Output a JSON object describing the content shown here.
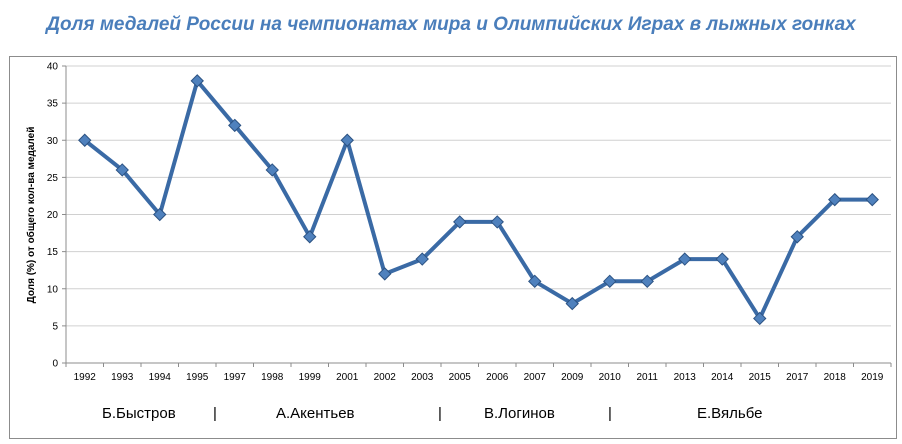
{
  "chart_data": {
    "type": "line",
    "title": "Доля медалей России на чемпионатах мира и Олимпийских Играх в лыжных гонках",
    "ylabel": "Доля (%) от  общего кол-ва медалей",
    "xlabel": "",
    "ylim": [
      0,
      40
    ],
    "yticks": [
      0,
      5,
      10,
      15,
      20,
      25,
      30,
      35,
      40
    ],
    "grid": true,
    "legend": "none",
    "categories": [
      "1992",
      "1993",
      "1994",
      "1995",
      "1997",
      "1998",
      "1999",
      "2001",
      "2002",
      "2003",
      "2005",
      "2006",
      "2007",
      "2009",
      "2010",
      "2011",
      "2013",
      "2014",
      "2015",
      "2017",
      "2018",
      "2019"
    ],
    "series": [
      {
        "values": [
          30,
          26,
          20,
          38,
          32,
          26,
          17,
          30,
          12,
          14,
          19,
          19,
          11,
          8,
          11,
          11,
          14,
          14,
          6,
          17,
          22,
          22
        ],
        "color": "#3a6aa5",
        "marker": "diamond"
      }
    ],
    "annotations": [
      "Б.Быстров",
      "|",
      "А.Акентьев",
      "|",
      "В.Логинов",
      "|",
      "Е.Вяльбе"
    ]
  },
  "colors": {
    "title": "#4a7ebb",
    "line": "#3a6aa5",
    "marker_fill": "#4f81bd",
    "grid": "#d0d0d0",
    "axis": "#8c8c8c"
  }
}
